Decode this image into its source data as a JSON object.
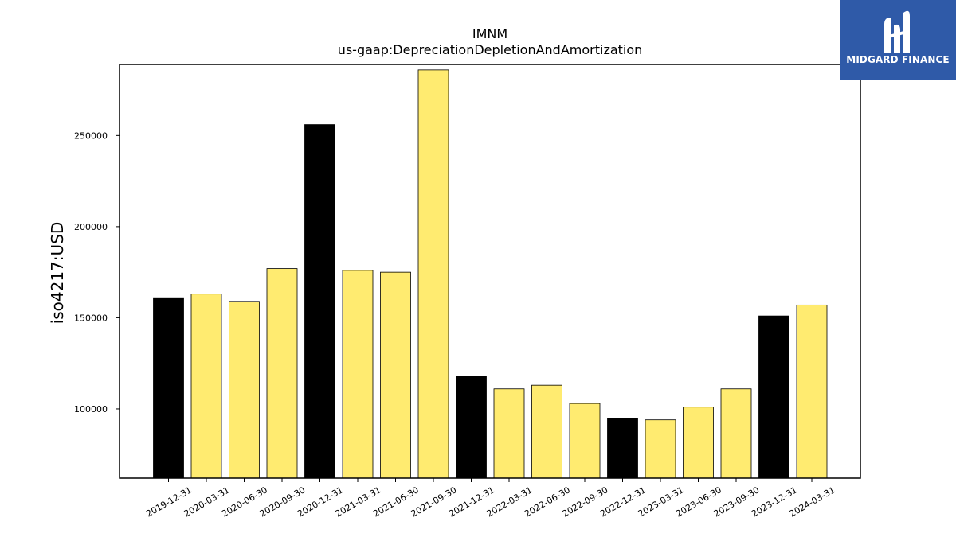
{
  "chart_data": {
    "type": "bar",
    "title": "IMNM",
    "subtitle": "us-gaap:DepreciationDepletionAndAmortization",
    "xlabel": "",
    "ylabel": "iso4217:USD",
    "ylim": [
      62000,
      289000
    ],
    "yticks": [
      100000,
      150000,
      200000,
      250000
    ],
    "ytick_labels": [
      "100000",
      "150000",
      "200000",
      "250000"
    ],
    "categories": [
      "2019-12-31",
      "2020-03-31",
      "2020-06-30",
      "2020-09-30",
      "2020-12-31",
      "2021-03-31",
      "2021-06-30",
      "2021-09-30",
      "2021-12-31",
      "2022-03-31",
      "2022-06-30",
      "2022-09-30",
      "2022-12-31",
      "2023-03-31",
      "2023-06-30",
      "2023-09-30",
      "2023-12-31",
      "2024-03-31"
    ],
    "values": [
      161000,
      163000,
      159000,
      177000,
      256000,
      176000,
      175000,
      286000,
      118000,
      111000,
      113000,
      103000,
      95000,
      94000,
      101000,
      111000,
      151000,
      157000
    ],
    "bar_colors": [
      "#000000",
      "#ffeb70",
      "#ffeb70",
      "#ffeb70",
      "#000000",
      "#ffeb70",
      "#ffeb70",
      "#ffeb70",
      "#000000",
      "#ffeb70",
      "#ffeb70",
      "#ffeb70",
      "#000000",
      "#ffeb70",
      "#ffeb70",
      "#ffeb70",
      "#000000",
      "#ffeb70"
    ],
    "grid": false,
    "legend": "none"
  },
  "logo": {
    "text": "MIDGARD FINANCE",
    "color": "#2f5aa8"
  }
}
